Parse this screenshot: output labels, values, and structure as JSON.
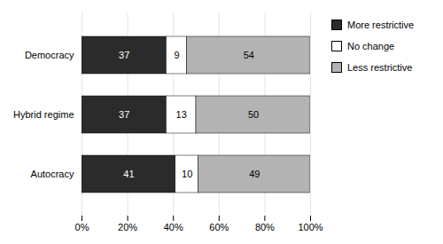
{
  "chart_data": {
    "type": "bar",
    "orientation": "horizontal",
    "stacked": true,
    "data_labels": true,
    "grid": true,
    "legend": "right",
    "categories": [
      "Autocracy",
      "Hybrid regime",
      "Democracy"
    ],
    "series": [
      {
        "name": "More restrictive",
        "color": "#2b2b2b",
        "values": [
          41,
          37,
          37
        ]
      },
      {
        "name": "No change",
        "color": "#ffffff",
        "values": [
          10,
          13,
          9
        ]
      },
      {
        "name": "Less restrictive",
        "color": "#b3b3b3",
        "values": [
          49,
          50,
          54
        ]
      }
    ],
    "xlim": [
      0,
      100
    ],
    "xticks": [
      {
        "value": 0,
        "label": "0%"
      },
      {
        "value": 20,
        "label": "20%"
      },
      {
        "value": 40,
        "label": "40%"
      },
      {
        "value": 60,
        "label": "60%"
      },
      {
        "value": 80,
        "label": "80%"
      },
      {
        "value": 100,
        "label": "100%"
      }
    ]
  }
}
